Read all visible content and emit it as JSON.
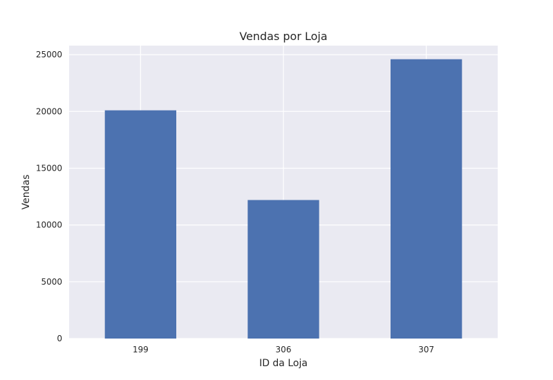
{
  "chart_data": {
    "type": "bar",
    "title": "Vendas por Loja",
    "xlabel": "ID da Loja",
    "ylabel": "Vendas",
    "categories": [
      "199",
      "306",
      "307"
    ],
    "values": [
      20100,
      12200,
      24600
    ],
    "ylim": [
      0,
      25800
    ],
    "yticks": [
      0,
      5000,
      10000,
      15000,
      20000,
      25000
    ],
    "grid": true,
    "colors": {
      "bar": "#4c72b0",
      "plot_background": "#eaeaf2",
      "grid": "#ffffff"
    }
  }
}
